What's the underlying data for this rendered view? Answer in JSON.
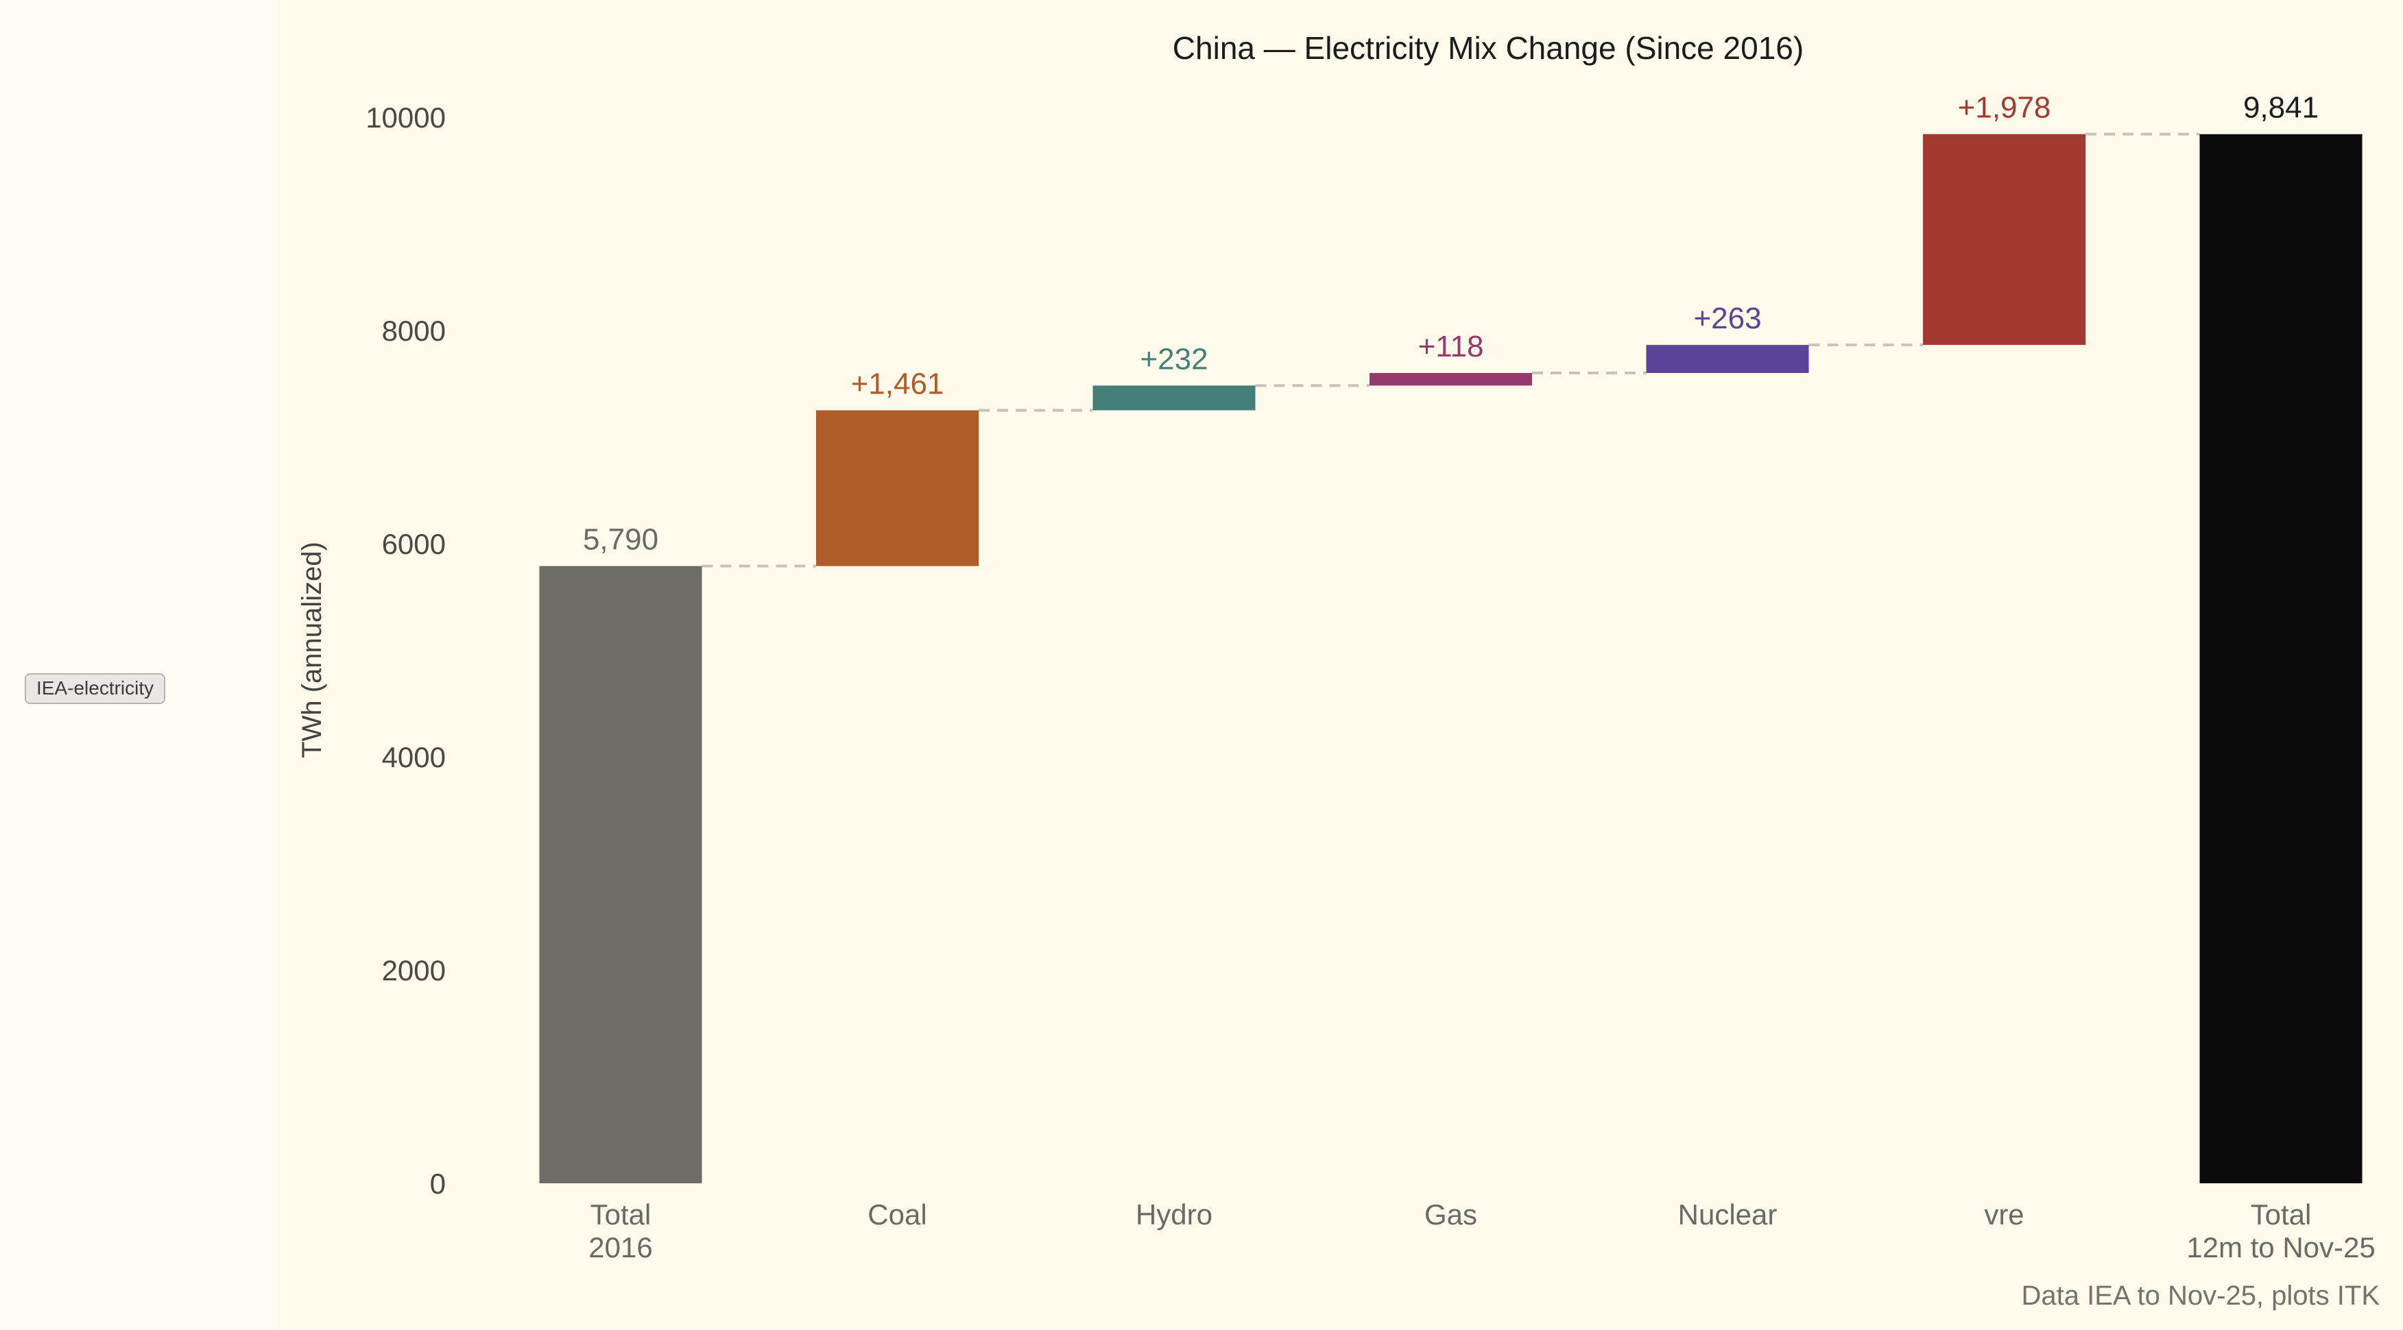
{
  "page": {
    "background_left": "#fffdf3",
    "background_figure": "#fdfaeb"
  },
  "badge": {
    "text": "IEA-electricity"
  },
  "footer": {
    "text": "Data IEA to Nov-25, plots ITK"
  },
  "chart_data": {
    "type": "bar",
    "variant": "waterfall",
    "title": "China — Electricity Mix Change (Since 2016)",
    "xlabel": "",
    "ylabel": "TWh (annualized)",
    "ylim": [
      0,
      10000
    ],
    "yticks": [
      0,
      2000,
      4000,
      6000,
      8000,
      10000
    ],
    "grid": false,
    "legend": false,
    "connector_color": "#c6c3ba",
    "axis_tick_color": "#4a4843",
    "axis_label_color": "#45433f",
    "category_label_color": "#6b6965",
    "bars": [
      {
        "key": "total-2016",
        "category_lines": [
          "Total",
          "2016"
        ],
        "kind": "total",
        "value": 5790,
        "label": "5,790",
        "color": "#6e6c66",
        "label_color": "#6b6965"
      },
      {
        "key": "coal",
        "category_lines": [
          "Coal"
        ],
        "kind": "delta",
        "value": 1461,
        "label": "+1,461",
        "color": "#b05c28",
        "label_color": "#b05c28"
      },
      {
        "key": "hydro",
        "category_lines": [
          "Hydro"
        ],
        "kind": "delta",
        "value": 232,
        "label": "+232",
        "color": "#447f7a",
        "label_color": "#447f7a"
      },
      {
        "key": "gas",
        "category_lines": [
          "Gas"
        ],
        "kind": "delta",
        "value": 118,
        "label": "+118",
        "color": "#943a6f",
        "label_color": "#943a6f"
      },
      {
        "key": "nuclear",
        "category_lines": [
          "Nuclear"
        ],
        "kind": "delta",
        "value": 263,
        "label": "+263",
        "color": "#5a4497",
        "label_color": "#5a4497"
      },
      {
        "key": "vre",
        "category_lines": [
          "vre"
        ],
        "kind": "delta",
        "value": 1978,
        "label": "+1,978",
        "color": "#a23a32",
        "label_color": "#a23a32"
      },
      {
        "key": "total-nov25",
        "category_lines": [
          "Total",
          "12m to Nov-25"
        ],
        "kind": "total",
        "value": 9841,
        "label": "9,841",
        "color": "#0b0b0b",
        "label_color": "#1c1c1c"
      }
    ]
  }
}
